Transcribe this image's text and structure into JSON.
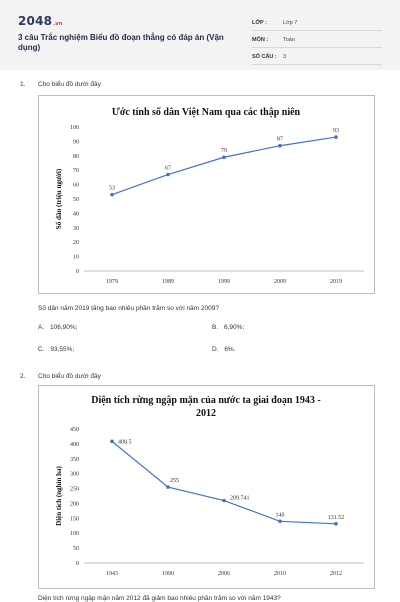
{
  "header": {
    "logo_main": "2048",
    "logo_tld": ".vn",
    "title": "3 câu Trắc nghiệm Biểu đồ đoạn thẳng có đáp án (Vận dụng)",
    "meta": [
      {
        "label": "LỚP :",
        "value": "Lớp 7"
      },
      {
        "label": "MÔN :",
        "value": "Toán"
      },
      {
        "label": "SỐ CÂU :",
        "value": "3"
      }
    ]
  },
  "questions": [
    {
      "number": "1.",
      "prompt": "Cho biểu đồ dưới đây",
      "question": "Số dân năm 2019 tăng bao nhiêu phần trăm so với năm 2009?",
      "options": [
        {
          "key": "A.",
          "text": "106,90%;"
        },
        {
          "key": "B.",
          "text": "6,90%;"
        },
        {
          "key": "C.",
          "text": "93,55%;"
        },
        {
          "key": "D.",
          "text": "6%."
        }
      ]
    },
    {
      "number": "2.",
      "prompt": "Cho biểu đồ dưới đây",
      "question": "Diện tích rừng ngập mặn năm 2012 đã giảm bao nhiêu phần trăm so với năm 1943?"
    }
  ],
  "chart_data": [
    {
      "type": "line",
      "title": "Ước tính số dân Việt Nam qua các thập niên",
      "ylabel": "Số dân (triệu người)",
      "xlabel": "",
      "categories": [
        "1979",
        "1989",
        "1999",
        "2009",
        "2019"
      ],
      "values": [
        53,
        67,
        79,
        87,
        93
      ],
      "data_labels": [
        "53",
        "67",
        "79",
        "87",
        "93"
      ],
      "yticks": [
        "0",
        "10",
        "20",
        "30",
        "40",
        "50",
        "60",
        "70",
        "80",
        "90",
        "100"
      ],
      "ylim": [
        0,
        100
      ],
      "grid": false,
      "color": "#4472c4"
    },
    {
      "type": "line",
      "title": "Diện tích rừng ngập mặn của nước ta giai đoạn 1943 - 2012",
      "ylabel": "Diện tích (nghìn ha)",
      "xlabel": "",
      "categories": [
        "1943",
        "1990",
        "2006",
        "2010",
        "2012"
      ],
      "values": [
        408.5,
        255,
        209.741,
        140,
        131.52
      ],
      "data_labels": [
        "408.5",
        "255",
        "209.741",
        "140",
        "131.52"
      ],
      "yticks": [
        "0",
        "50",
        "100",
        "150",
        "200",
        "250",
        "300",
        "350",
        "400",
        "450"
      ],
      "ylim": [
        0,
        450
      ],
      "grid": false,
      "color": "#4472c4"
    }
  ]
}
